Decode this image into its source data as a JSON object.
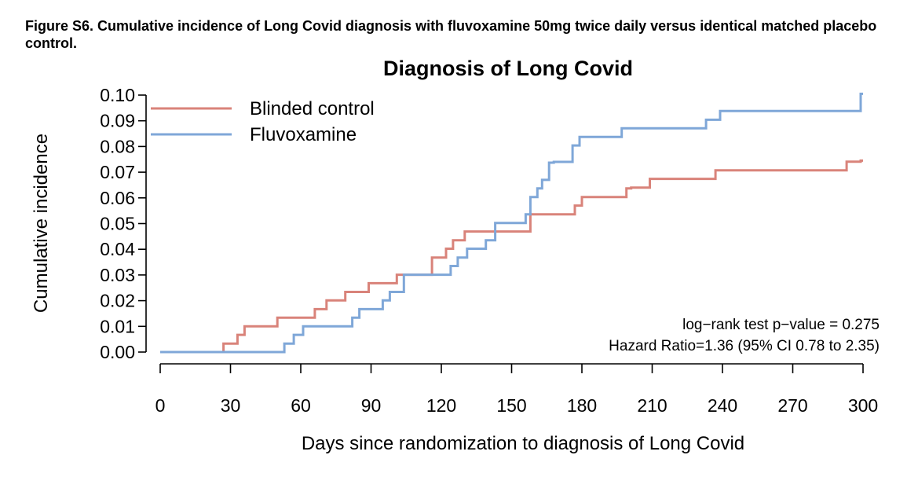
{
  "figure_caption": "Figure S6. Cumulative incidence of Long Covid diagnosis with fluvoxamine 50mg twice daily versus identical matched placebo control.",
  "colors": {
    "control": "#d9837a",
    "fluvoxamine": "#7fa7d8",
    "axis": "#000000"
  },
  "chart_data": {
    "type": "line",
    "title": "Diagnosis of Long Covid",
    "xlabel": "Days since randomization to diagnosis of Long Covid",
    "ylabel": "Cumulative incidence",
    "xlim": [
      0,
      300
    ],
    "ylim": [
      0,
      0.1
    ],
    "xticks": [
      0,
      30,
      60,
      90,
      120,
      150,
      180,
      210,
      240,
      270,
      300
    ],
    "yticks": [
      0.0,
      0.01,
      0.02,
      0.03,
      0.04,
      0.05,
      0.06,
      0.07,
      0.08,
      0.09,
      0.1
    ],
    "ytick_labels": [
      "0.00",
      "0.01",
      "0.02",
      "0.03",
      "0.04",
      "0.05",
      "0.06",
      "0.07",
      "0.08",
      "0.09",
      "0.10"
    ],
    "grid": false,
    "legend_position": "top-left",
    "step": true,
    "series": [
      {
        "name": "Blinded control",
        "color": "#d9837a",
        "x": [
          0,
          27,
          33,
          36,
          50,
          66,
          71,
          79,
          89,
          101,
          116,
          122,
          125,
          130,
          158,
          177,
          180,
          199,
          201,
          209,
          237,
          293,
          299
        ],
        "y": [
          0,
          0.0033,
          0.0067,
          0.01,
          0.0134,
          0.0167,
          0.0201,
          0.0234,
          0.0268,
          0.0301,
          0.0368,
          0.0402,
          0.0435,
          0.0469,
          0.0536,
          0.057,
          0.0603,
          0.0637,
          0.064,
          0.0674,
          0.0707,
          0.0741,
          0.0745
        ]
      },
      {
        "name": "Fluvoxamine",
        "color": "#7fa7d8",
        "x": [
          0,
          53,
          57,
          61,
          82,
          85,
          95,
          98,
          104,
          124,
          127,
          131,
          139,
          143,
          156,
          158,
          161,
          163,
          166,
          168,
          176,
          179,
          197,
          233,
          239,
          299
        ],
        "y": [
          0,
          0.0033,
          0.0067,
          0.01,
          0.0134,
          0.0167,
          0.0201,
          0.0234,
          0.0301,
          0.0335,
          0.0368,
          0.0402,
          0.0435,
          0.0502,
          0.0536,
          0.0603,
          0.0637,
          0.067,
          0.0737,
          0.074,
          0.0804,
          0.0837,
          0.0871,
          0.0904,
          0.0938,
          0.1005
        ]
      }
    ],
    "annotations": [
      "log−rank test p−value = 0.275",
      "Hazard Ratio=1.36 (95% CI 0.78 to 2.35)"
    ]
  }
}
